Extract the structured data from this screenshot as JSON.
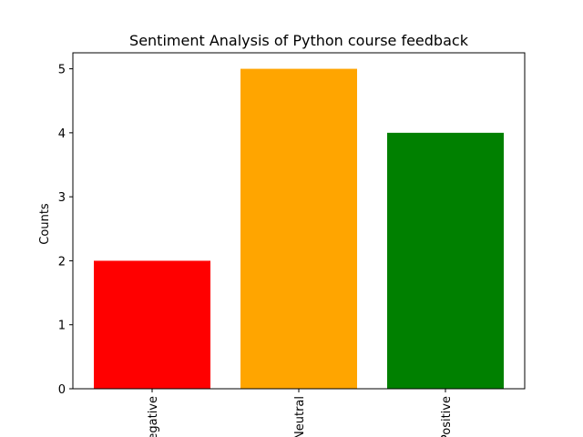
{
  "chart_data": {
    "type": "bar",
    "title": "Sentiment Analysis of Python course feedback",
    "xlabel": "",
    "ylabel": "Counts",
    "categories": [
      "Negative",
      "Neutral",
      "Positive"
    ],
    "values": [
      2,
      5,
      4
    ],
    "colors": [
      "#ff0000",
      "#ffa500",
      "#008000"
    ],
    "ylim": [
      0,
      5.25
    ],
    "yticks": [
      0,
      1,
      2,
      3,
      4,
      5
    ],
    "xtick_rotation": 90,
    "grid": false,
    "legend": "none"
  }
}
